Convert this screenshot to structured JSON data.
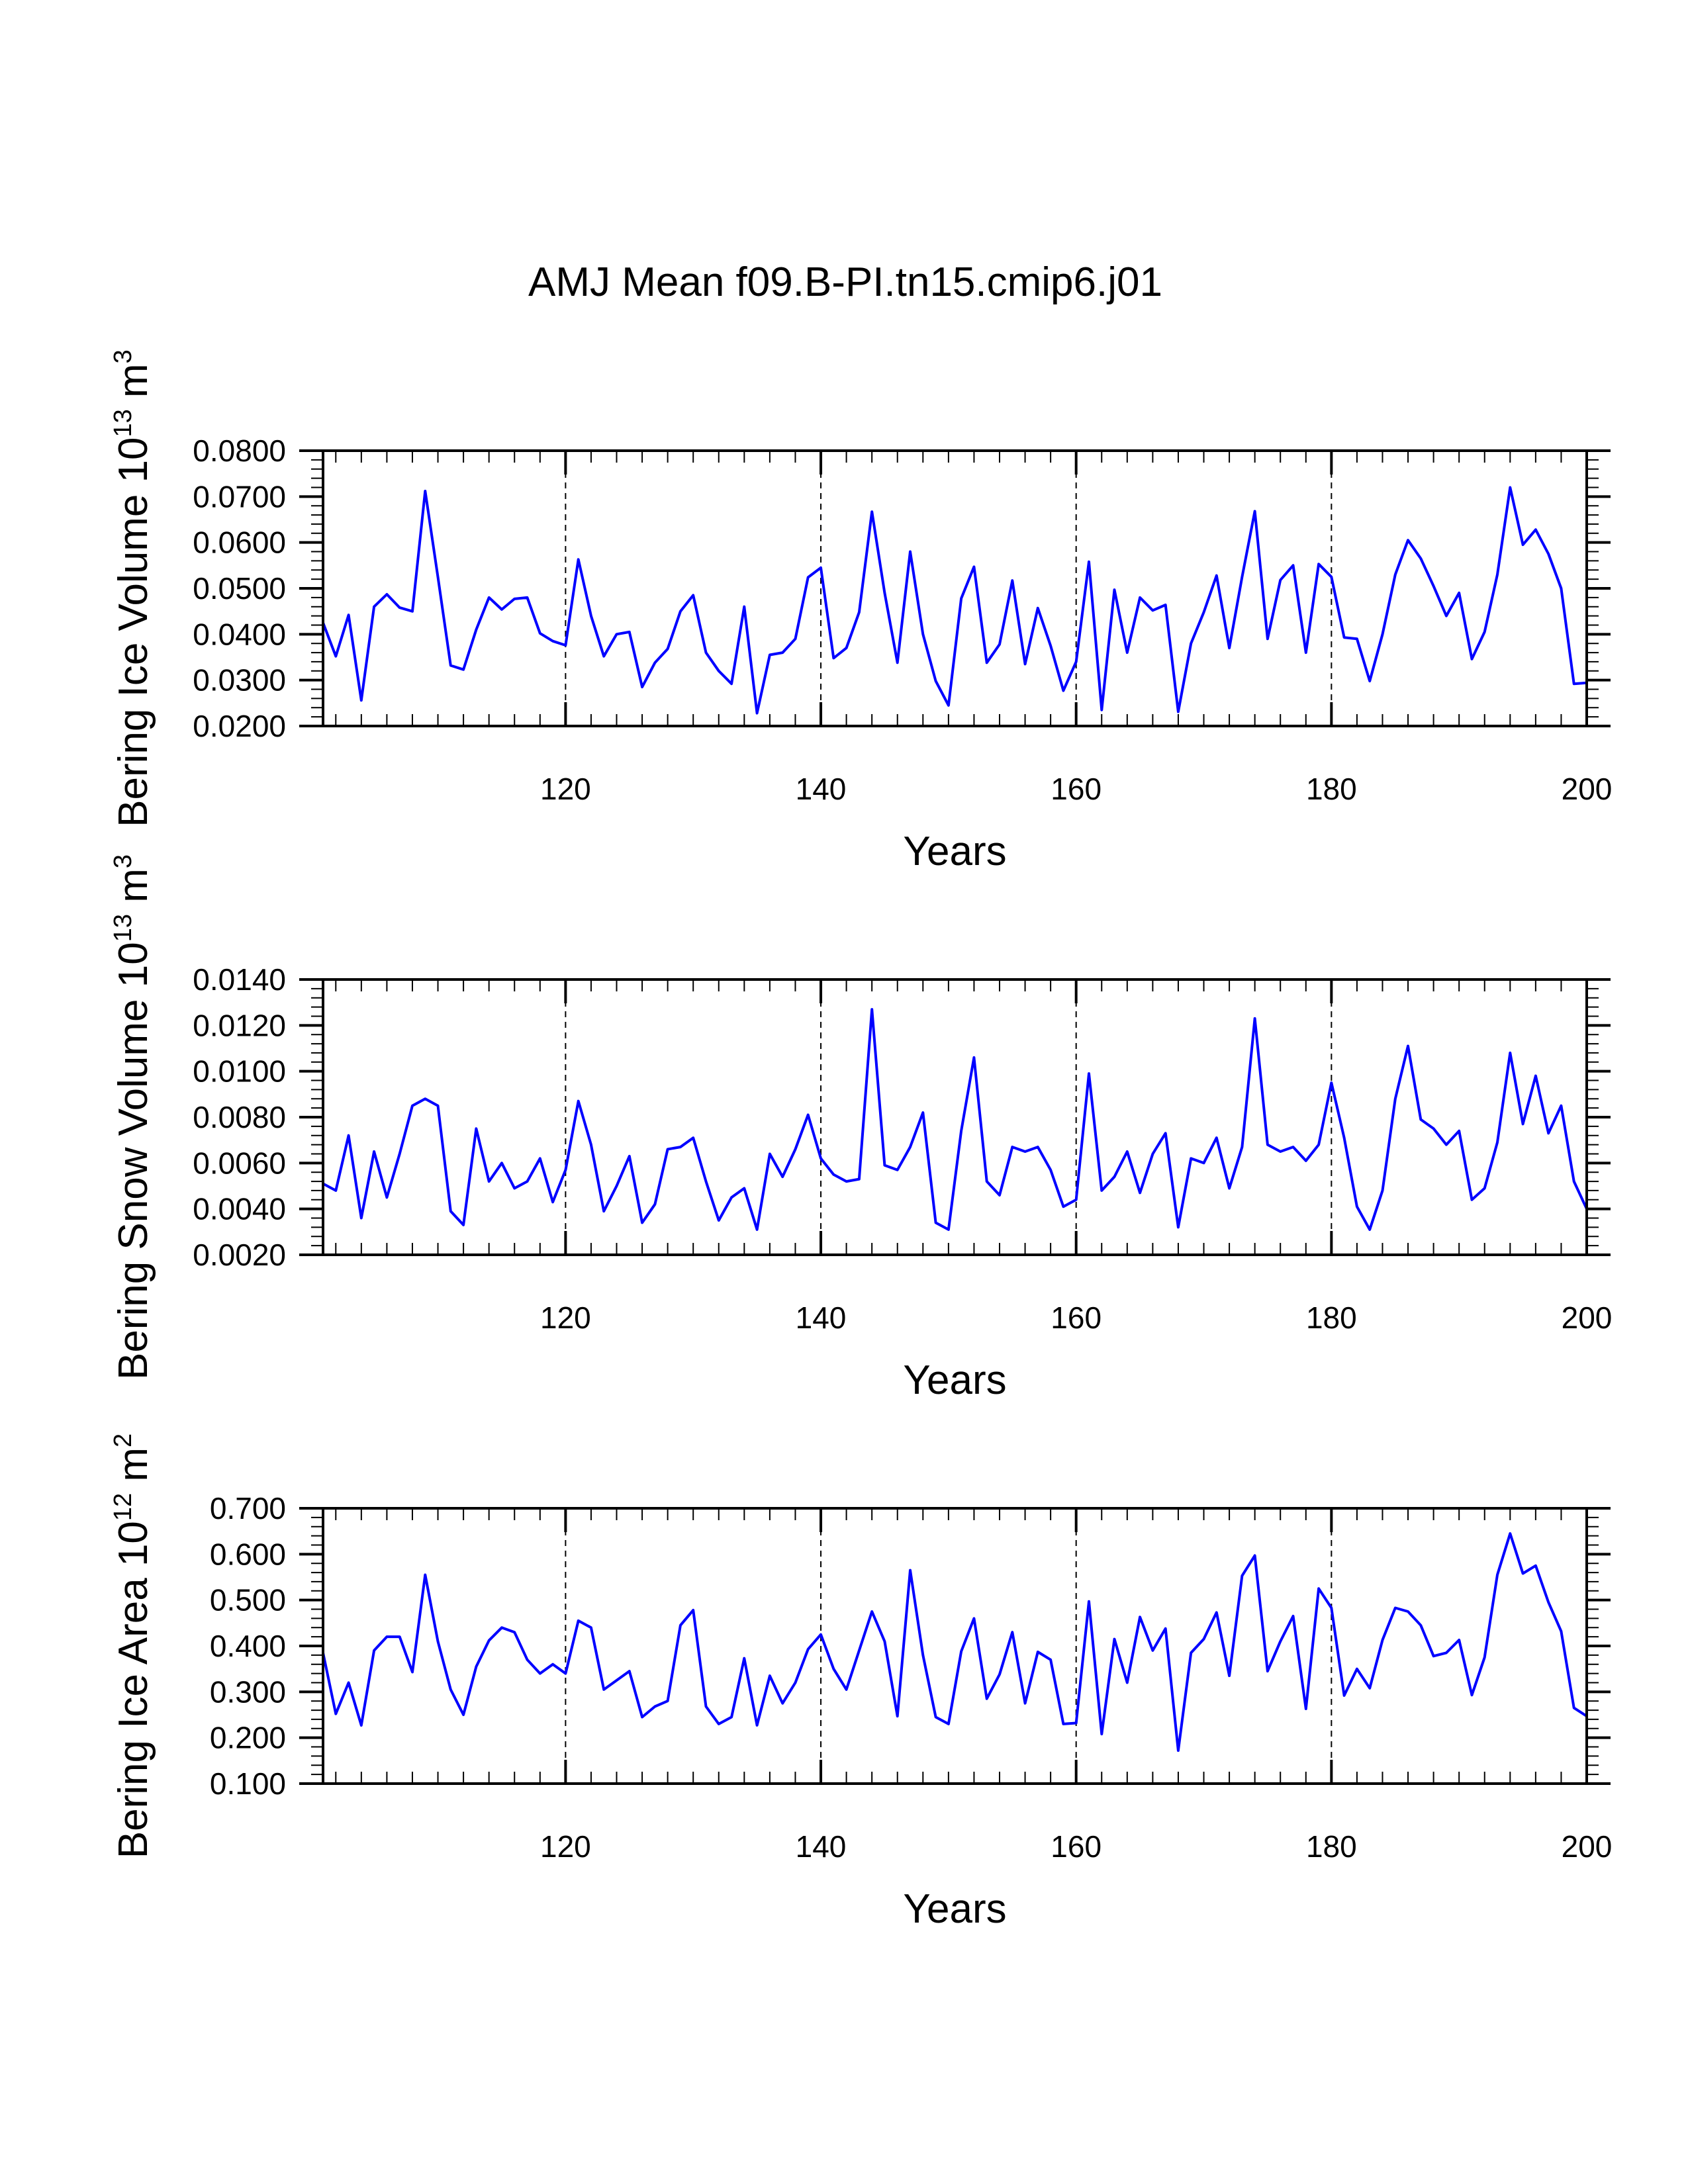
{
  "colors": {
    "line": "#0000ff",
    "axis": "#000000",
    "background": "#ffffff"
  },
  "chart_data": [
    {
      "type": "line",
      "title": "AMJ Mean f09.B-PI.tn15.cmip6.j01",
      "xlabel": "Years",
      "ylabel_main": "Bering Ice Volume 10",
      "ylabel_exp": "13",
      "ylabel_unit": " m",
      "ylabel_unit_exp": "3",
      "xlim": [
        101,
        200
      ],
      "ylim": [
        0.02,
        0.08
      ],
      "xticks": [
        120,
        140,
        160,
        180,
        200
      ],
      "yticks": [
        0.02,
        0.03,
        0.04,
        0.05,
        0.06,
        0.07,
        0.08
      ],
      "ytick_labels": [
        "0.0200",
        "0.0300",
        "0.0400",
        "0.0500",
        "0.0600",
        "0.0700",
        "0.0800"
      ],
      "grid_x": [
        120,
        140,
        160,
        180
      ],
      "x_start": 101,
      "series": [
        {
          "name": "Bering Ice Volume",
          "values": [
            0.0425,
            0.0352,
            0.0442,
            0.0256,
            0.046,
            0.0487,
            0.0458,
            0.045,
            0.0712,
            0.0525,
            0.0332,
            0.0323,
            0.041,
            0.048,
            0.0454,
            0.0477,
            0.048,
            0.0402,
            0.0385,
            0.0376,
            0.0563,
            0.044,
            0.0352,
            0.04,
            0.0405,
            0.0285,
            0.0338,
            0.0368,
            0.045,
            0.0485,
            0.036,
            0.032,
            0.0292,
            0.046,
            0.0228,
            0.0355,
            0.036,
            0.039,
            0.0524,
            0.0545,
            0.0348,
            0.037,
            0.0448,
            0.0667,
            0.049,
            0.0338,
            0.058,
            0.04,
            0.0298,
            0.0245,
            0.0478,
            0.0547,
            0.0338,
            0.0378,
            0.0517,
            0.0335,
            0.0457,
            0.0375,
            0.0277,
            0.034,
            0.0558,
            0.0235,
            0.0497,
            0.036,
            0.048,
            0.0452,
            0.0464,
            0.0231,
            0.038,
            0.0448,
            0.0528,
            0.037,
            0.0525,
            0.0668,
            0.039,
            0.0518,
            0.055,
            0.036,
            0.0553,
            0.0525,
            0.0393,
            0.039,
            0.0298,
            0.04,
            0.053,
            0.0605,
            0.0565,
            0.0505,
            0.044,
            0.049,
            0.0346,
            0.0405,
            0.053,
            0.072,
            0.0595,
            0.0628,
            0.0575,
            0.05,
            0.0292,
            0.0294
          ]
        }
      ]
    },
    {
      "type": "line",
      "xlabel": "Years",
      "ylabel_main": "Bering Snow Volume 10",
      "ylabel_exp": "13",
      "ylabel_unit": " m",
      "ylabel_unit_exp": "3",
      "xlim": [
        101,
        200
      ],
      "ylim": [
        0.002,
        0.014
      ],
      "xticks": [
        120,
        140,
        160,
        180,
        200
      ],
      "yticks": [
        0.002,
        0.004,
        0.006,
        0.008,
        0.01,
        0.012,
        0.014
      ],
      "ytick_labels": [
        "0.0020",
        "0.0040",
        "0.0060",
        "0.0080",
        "0.0100",
        "0.0120",
        "0.0140"
      ],
      "grid_x": [
        120,
        140,
        160,
        180
      ],
      "x_start": 101,
      "series": [
        {
          "name": "Bering Snow Volume",
          "values": [
            0.0051,
            0.0048,
            0.0072,
            0.0036,
            0.0065,
            0.0045,
            0.0064,
            0.0085,
            0.0088,
            0.0085,
            0.0039,
            0.0033,
            0.0075,
            0.0052,
            0.006,
            0.0049,
            0.0052,
            0.0062,
            0.0043,
            0.0057,
            0.0087,
            0.0068,
            0.0039,
            0.005,
            0.0063,
            0.0034,
            0.0042,
            0.0066,
            0.0067,
            0.0071,
            0.0052,
            0.0035,
            0.0045,
            0.0049,
            0.0031,
            0.0064,
            0.0054,
            0.0066,
            0.0081,
            0.0062,
            0.0055,
            0.0052,
            0.0053,
            0.0127,
            0.0059,
            0.0057,
            0.0067,
            0.0082,
            0.0034,
            0.0031,
            0.0074,
            0.0106,
            0.0052,
            0.0046,
            0.0067,
            0.0065,
            0.0067,
            0.0057,
            0.0041,
            0.0044,
            0.0099,
            0.0048,
            0.0054,
            0.0065,
            0.0047,
            0.0064,
            0.0073,
            0.0032,
            0.0062,
            0.006,
            0.0071,
            0.0049,
            0.0067,
            0.0123,
            0.0068,
            0.0065,
            0.0067,
            0.0061,
            0.0068,
            0.0095,
            0.0071,
            0.0041,
            0.0031,
            0.0048,
            0.0088,
            0.0111,
            0.0079,
            0.0075,
            0.0068,
            0.0074,
            0.0044,
            0.0049,
            0.0069,
            0.0108,
            0.0077,
            0.0098,
            0.0073,
            0.0085,
            0.0052,
            0.004
          ]
        }
      ]
    },
    {
      "type": "line",
      "xlabel": "Years",
      "ylabel_main": "Bering Ice Area 10",
      "ylabel_exp": "12",
      "ylabel_unit": " m",
      "ylabel_unit_exp": "2",
      "xlim": [
        101,
        200
      ],
      "ylim": [
        0.1,
        0.7
      ],
      "xticks": [
        120,
        140,
        160,
        180,
        200
      ],
      "yticks": [
        0.1,
        0.2,
        0.3,
        0.4,
        0.5,
        0.6,
        0.7
      ],
      "ytick_labels": [
        "0.100",
        "0.200",
        "0.300",
        "0.400",
        "0.500",
        "0.600",
        "0.700"
      ],
      "grid_x": [
        120,
        140,
        160,
        180
      ],
      "x_start": 101,
      "series": [
        {
          "name": "Bering Ice Area",
          "values": [
            0.385,
            0.252,
            0.32,
            0.227,
            0.39,
            0.42,
            0.42,
            0.343,
            0.555,
            0.41,
            0.305,
            0.25,
            0.355,
            0.412,
            0.44,
            0.43,
            0.37,
            0.34,
            0.36,
            0.34,
            0.455,
            0.44,
            0.305,
            0.325,
            0.345,
            0.245,
            0.268,
            0.28,
            0.445,
            0.478,
            0.268,
            0.23,
            0.245,
            0.373,
            0.227,
            0.335,
            0.275,
            0.32,
            0.393,
            0.425,
            0.35,
            0.305,
            0.39,
            0.475,
            0.41,
            0.247,
            0.565,
            0.38,
            0.245,
            0.23,
            0.388,
            0.46,
            0.285,
            0.338,
            0.43,
            0.275,
            0.387,
            0.37,
            0.23,
            0.232,
            0.497,
            0.208,
            0.415,
            0.32,
            0.463,
            0.39,
            0.438,
            0.172,
            0.385,
            0.415,
            0.473,
            0.335,
            0.553,
            0.597,
            0.345,
            0.41,
            0.465,
            0.263,
            0.525,
            0.483,
            0.292,
            0.35,
            0.308,
            0.413,
            0.483,
            0.475,
            0.445,
            0.378,
            0.385,
            0.413,
            0.293,
            0.375,
            0.555,
            0.645,
            0.558,
            0.575,
            0.495,
            0.432,
            0.265,
            0.247
          ]
        }
      ]
    }
  ]
}
